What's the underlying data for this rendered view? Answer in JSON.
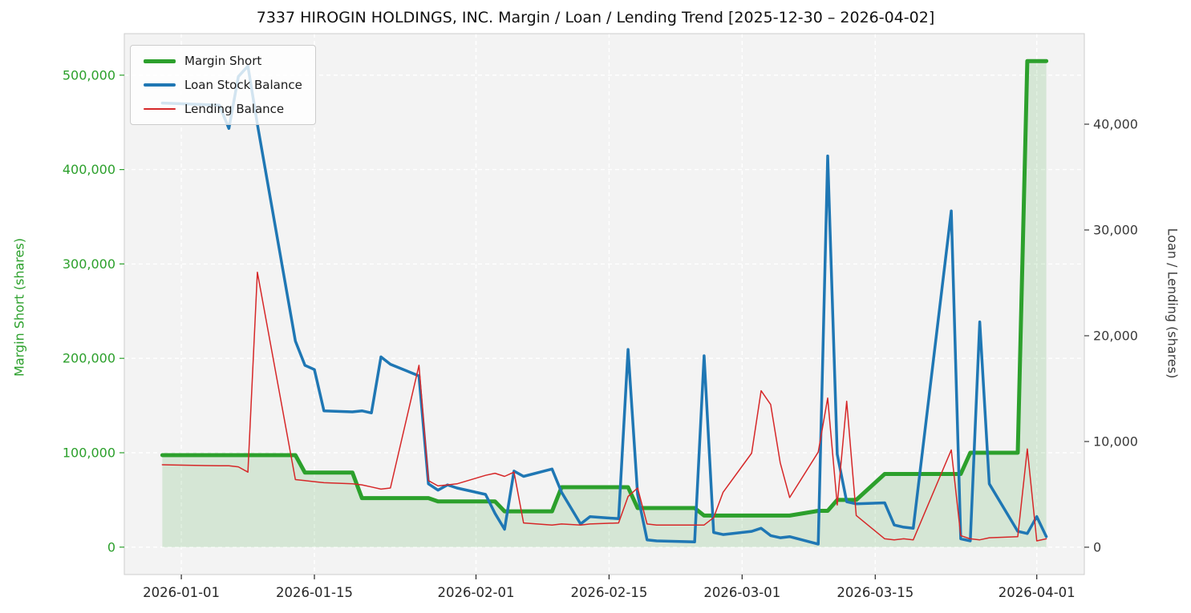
{
  "title": "7337 HIROGIN HOLDINGS, INC. Margin / Loan / Lending Trend [2025-12-30 – 2026-04-02]",
  "chart_data": {
    "type": "line",
    "title": "7337 HIROGIN HOLDINGS, INC. Margin / Loan / Lending Trend [2025-12-30 – 2026-04-02]",
    "x": [
      "2025-12-30",
      "2026-01-05",
      "2026-01-06",
      "2026-01-07",
      "2026-01-08",
      "2026-01-09",
      "2026-01-13",
      "2026-01-14",
      "2026-01-15",
      "2026-01-16",
      "2026-01-19",
      "2026-01-20",
      "2026-01-21",
      "2026-01-22",
      "2026-01-23",
      "2026-01-26",
      "2026-01-27",
      "2026-01-28",
      "2026-01-29",
      "2026-01-30",
      "2026-02-02",
      "2026-02-03",
      "2026-02-04",
      "2026-02-05",
      "2026-02-06",
      "2026-02-09",
      "2026-02-10",
      "2026-02-12",
      "2026-02-13",
      "2026-02-16",
      "2026-02-17",
      "2026-02-18",
      "2026-02-19",
      "2026-02-20",
      "2026-02-24",
      "2026-02-25",
      "2026-02-26",
      "2026-02-27",
      "2026-03-02",
      "2026-03-03",
      "2026-03-04",
      "2026-03-05",
      "2026-03-06",
      "2026-03-09",
      "2026-03-10",
      "2026-03-11",
      "2026-03-12",
      "2026-03-13",
      "2026-03-16",
      "2026-03-17",
      "2026-03-18",
      "2026-03-19",
      "2026-03-23",
      "2026-03-24",
      "2026-03-25",
      "2026-03-26",
      "2026-03-27",
      "2026-03-30",
      "2026-03-31",
      "2026-04-01",
      "2026-04-02"
    ],
    "series": [
      {
        "name": "Margin Short",
        "axis": "left",
        "color": "#2ca02c",
        "width": 5,
        "area_fill": true,
        "fill_opacity": 0.15,
        "values": [
          97500,
          97500,
          97500,
          97500,
          97500,
          97500,
          97500,
          79000,
          79000,
          79000,
          79000,
          52000,
          52000,
          52000,
          52000,
          52000,
          52000,
          48500,
          48500,
          48500,
          48500,
          48500,
          38000,
          38000,
          38000,
          38000,
          63500,
          63500,
          63500,
          63500,
          63500,
          41500,
          41500,
          41500,
          41500,
          33500,
          33500,
          33500,
          33500,
          33500,
          33500,
          33500,
          33500,
          38500,
          38500,
          50000,
          50000,
          50000,
          77500,
          77500,
          77500,
          77500,
          77500,
          77500,
          100000,
          100000,
          100000,
          100000,
          515000,
          515000,
          515000
        ]
      },
      {
        "name": "Loan Stock Balance",
        "axis": "right",
        "color": "#1f77b4",
        "width": 3.5,
        "area_fill": false,
        "values": [
          42000,
          41800,
          39600,
          44500,
          45500,
          40000,
          19500,
          17200,
          16800,
          12900,
          12800,
          12900,
          12700,
          18000,
          17300,
          16200,
          6000,
          5400,
          5900,
          5600,
          5000,
          3200,
          1700,
          7200,
          6700,
          7400,
          5200,
          2200,
          2900,
          2700,
          18700,
          5000,
          700,
          600,
          500,
          18100,
          1400,
          1200,
          1500,
          1800,
          1100,
          900,
          1000,
          300,
          37000,
          8800,
          4300,
          4100,
          4200,
          2100,
          1900,
          1800,
          31800,
          800,
          600,
          21300,
          6000,
          1500,
          1300,
          2900,
          1000
        ]
      },
      {
        "name": "Lending Balance",
        "axis": "right",
        "color": "#d62728",
        "width": 1.5,
        "area_fill": false,
        "values": [
          7800,
          7700,
          7700,
          7600,
          7100,
          26000,
          6400,
          6300,
          6200,
          6100,
          6000,
          5900,
          5700,
          5500,
          5600,
          17200,
          6300,
          5800,
          5900,
          6000,
          6800,
          7000,
          6700,
          7100,
          2300,
          2100,
          2200,
          2100,
          2200,
          2300,
          4800,
          5600,
          2200,
          2100,
          2100,
          2100,
          2800,
          5200,
          8900,
          14800,
          13500,
          8000,
          4700,
          9000,
          14100,
          4000,
          13800,
          3000,
          800,
          700,
          800,
          700,
          9200,
          1100,
          800,
          700,
          900,
          1000,
          9300,
          600,
          800
        ]
      }
    ],
    "left_axis": {
      "label": "Margin Short (shares)",
      "color": "#2ca02c",
      "ticks": [
        0,
        100000,
        200000,
        300000,
        400000,
        500000
      ],
      "range": [
        -29000,
        544000
      ]
    },
    "right_axis": {
      "label": "Loan / Lending (shares)",
      "color": "#3a3a3a",
      "ticks": [
        0,
        10000,
        20000,
        30000,
        40000
      ],
      "range": [
        -2580,
        48560
      ]
    },
    "x_axis": {
      "ticks": [
        "2026-01-01",
        "2026-01-15",
        "2026-02-01",
        "2026-02-15",
        "2026-03-01",
        "2026-03-15",
        "2026-04-01"
      ],
      "range": [
        "2025-12-26",
        "2026-04-06"
      ]
    },
    "legend": {
      "position": "upper-left",
      "entries": [
        "Margin Short",
        "Loan Stock Balance",
        "Lending Balance"
      ]
    },
    "style": {
      "plot_background": "#f3f3f3",
      "grid_color": "#ffffff",
      "spine_color": "#cccccc",
      "x_tick_color": "#262626",
      "legend_background": "rgba(255,255,255,0.8)"
    }
  }
}
